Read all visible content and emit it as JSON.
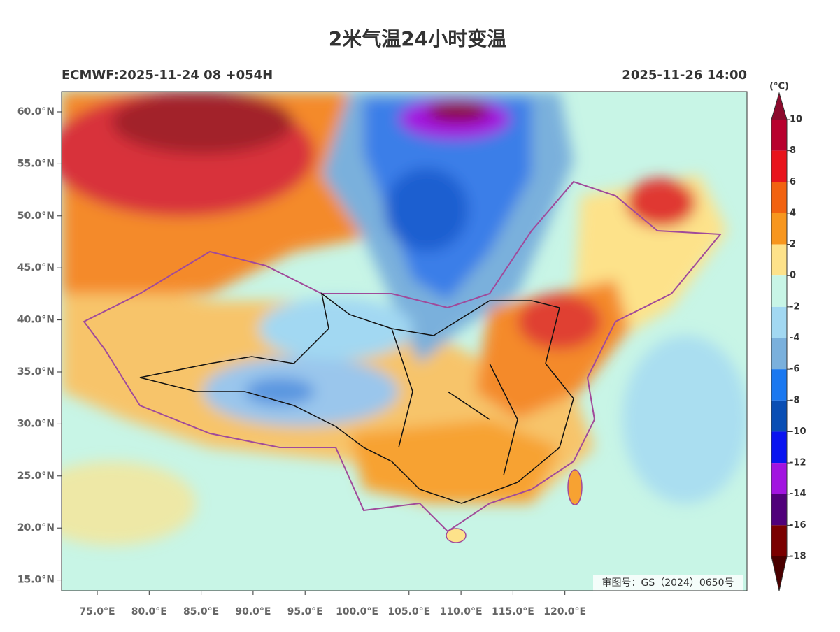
{
  "title": "2米气温24小时变温",
  "subtitle_left": "ECMWF:2025-11-24 08 +054H",
  "subtitle_right": "2025-11-26 14:00",
  "lat_labels": [
    "60.0°N",
    "55.0°N",
    "50.0°N",
    "45.0°N",
    "40.0°N",
    "35.0°N",
    "30.0°N",
    "25.0°N",
    "20.0°N",
    "15.0°N"
  ],
  "lon_labels": [
    "75.0°E",
    "80.0°E",
    "85.0°E",
    "90.0°E",
    "95.0°E",
    "100.0°E",
    "105.0°E",
    "110.0°E",
    "115.0°E",
    "120.0°E"
  ],
  "colorbar": {
    "unit": "(°C)",
    "levels": [
      10,
      8,
      6,
      4,
      2,
      0,
      -2,
      -4,
      -6,
      -8,
      -10,
      -12,
      -14,
      -16,
      -18
    ],
    "over_color": "#8c0a2c",
    "colors": [
      "#b8002e",
      "#e8141c",
      "#f26210",
      "#f7961e",
      "#fde28a",
      "#c8f5e6",
      "#a2d8f2",
      "#7ab0dc",
      "#1a78f0",
      "#0a4eb4",
      "#0a14f0",
      "#a214e0",
      "#50007a",
      "#7a0000"
    ],
    "under_color": "#4a0000"
  },
  "map_note": "审图号：GS（2024）0650号"
}
